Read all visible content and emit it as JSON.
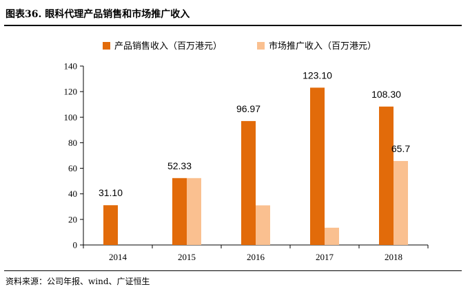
{
  "header": {
    "title": "图表36.  眼科代理产品销售和市场推广收入"
  },
  "footer": {
    "source": "资料来源：公司年报、wind、广证恒生"
  },
  "colors": {
    "series1": "#E26B0A",
    "series2": "#FAC090"
  },
  "chart_data": {
    "type": "bar",
    "title": "",
    "xlabel": "",
    "ylabel": "",
    "categories": [
      "2014",
      "2015",
      "2016",
      "2017",
      "2018"
    ],
    "series": [
      {
        "name": "产品销售收入（百万港元）",
        "values": [
          31.1,
          52.33,
          96.97,
          123.1,
          108.3
        ],
        "labels": [
          "31.10",
          "52.33",
          "96.97",
          "123.10",
          "108.30"
        ]
      },
      {
        "name": "市场推广收入（百万港元）",
        "values": [
          0,
          52.33,
          31,
          13.5,
          65.7
        ],
        "labels": [
          "",
          "",
          "",
          "",
          "65.7"
        ]
      }
    ],
    "ylim": [
      0,
      140
    ],
    "yticks": [
      "0",
      "20",
      "40",
      "60",
      "80",
      "100",
      "120",
      "140"
    ],
    "legend": "top",
    "grid": false
  }
}
